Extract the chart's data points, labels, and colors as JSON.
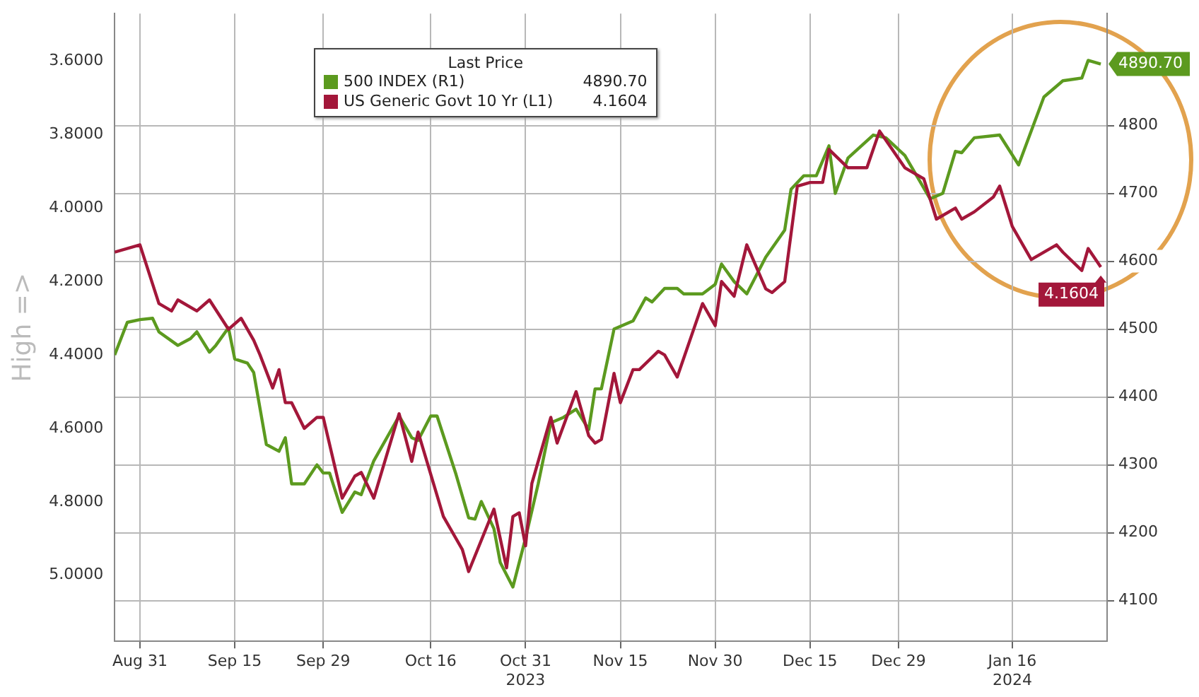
{
  "chart_data": {
    "type": "line",
    "ylabel": "High =>",
    "legend_title": "Last Price",
    "legend": "top",
    "grid": true,
    "marker": "none",
    "line_style": "solid",
    "xlim": [
      "2023-08-27",
      "2024-01-31"
    ],
    "xticks": [
      {
        "value": "2023-08-31",
        "label": "Aug 31"
      },
      {
        "value": "2023-09-15",
        "label": "Sep 15"
      },
      {
        "value": "2023-09-29",
        "label": "Sep 29"
      },
      {
        "value": "2023-10-16",
        "label": "Oct 16"
      },
      {
        "value": "2023-10-31",
        "label": "Oct 31\n2023"
      },
      {
        "value": "2023-11-15",
        "label": "Nov 15"
      },
      {
        "value": "2023-11-30",
        "label": "Nov 30"
      },
      {
        "value": "2023-12-15",
        "label": "Dec 15"
      },
      {
        "value": "2023-12-29",
        "label": "Dec 29"
      },
      {
        "value": "2024-01-16",
        "label": "Jan 16\n2024"
      }
    ],
    "ylim": [
      5.18,
      3.47
    ],
    "yticks": [
      {
        "value": 3.6,
        "label": "3.6000"
      },
      {
        "value": 3.8,
        "label": "3.8000"
      },
      {
        "value": 4.0,
        "label": "4.0000"
      },
      {
        "value": 4.2,
        "label": "4.2000"
      },
      {
        "value": 4.4,
        "label": "4.4000"
      },
      {
        "value": 4.6,
        "label": "4.6000"
      },
      {
        "value": 4.8,
        "label": "4.8000"
      },
      {
        "value": 5.0,
        "label": "5.0000"
      }
    ],
    "y2lim": [
      4040,
      4965
    ],
    "y2ticks": [
      4100,
      4200,
      4300,
      4400,
      4500,
      4600,
      4700,
      4800
    ],
    "series": [
      {
        "name": "500 INDEX (R1)",
        "color": "#5c9a1f",
        "axis": "y2",
        "x": [
          "2023-08-27",
          "2023-08-29",
          "2023-08-31",
          "2023-09-02",
          "2023-09-03",
          "2023-09-06",
          "2023-09-08",
          "2023-09-09",
          "2023-09-11",
          "2023-09-12",
          "2023-09-14",
          "2023-09-15",
          "2023-09-17",
          "2023-09-18",
          "2023-09-20",
          "2023-09-22",
          "2023-09-23",
          "2023-09-24",
          "2023-09-26",
          "2023-09-28",
          "2023-09-29",
          "2023-09-30",
          "2023-10-02",
          "2023-10-04",
          "2023-10-05",
          "2023-10-07",
          "2023-10-11",
          "2023-10-13",
          "2023-10-14",
          "2023-10-16",
          "2023-10-17",
          "2023-10-20",
          "2023-10-22",
          "2023-10-23",
          "2023-10-24",
          "2023-10-26",
          "2023-10-27",
          "2023-10-29",
          "2023-10-31",
          "2023-11-02",
          "2023-11-04",
          "2023-11-06",
          "2023-11-08",
          "2023-11-10",
          "2023-11-11",
          "2023-11-12",
          "2023-11-14",
          "2023-11-17",
          "2023-11-19",
          "2023-11-20",
          "2023-11-22",
          "2023-11-24",
          "2023-11-25",
          "2023-11-28",
          "2023-11-30",
          "2023-12-01",
          "2023-12-03",
          "2023-12-05",
          "2023-12-08",
          "2023-12-11",
          "2023-12-12",
          "2023-12-14",
          "2023-12-16",
          "2023-12-18",
          "2023-12-19",
          "2023-12-21",
          "2023-12-25",
          "2023-12-27",
          "2023-12-30",
          "2024-01-03",
          "2024-01-05",
          "2024-01-07",
          "2024-01-08",
          "2024-01-10",
          "2024-01-14",
          "2024-01-17",
          "2024-01-21",
          "2024-01-24",
          "2024-01-27",
          "2024-01-28",
          "2024-01-30"
        ],
        "values": [
          4462,
          4510,
          4514,
          4516,
          4496,
          4476,
          4486,
          4496,
          4466,
          4476,
          4502,
          4456,
          4450,
          4436,
          4330,
          4320,
          4340,
          4272,
          4272,
          4300,
          4288,
          4288,
          4230,
          4260,
          4256,
          4306,
          4372,
          4340,
          4336,
          4372,
          4372,
          4286,
          4222,
          4220,
          4246,
          4206,
          4156,
          4120,
          4192,
          4272,
          4362,
          4370,
          4382,
          4352,
          4412,
          4412,
          4500,
          4512,
          4546,
          4540,
          4560,
          4560,
          4552,
          4552,
          4566,
          4596,
          4570,
          4552,
          4606,
          4646,
          4706,
          4726,
          4726,
          4770,
          4700,
          4752,
          4786,
          4782,
          4756,
          4692,
          4700,
          4762,
          4760,
          4782,
          4786,
          4742,
          4842,
          4866,
          4870,
          4896,
          4890.7
        ],
        "value_labels": [
          null,
          null,
          null,
          null,
          null,
          null,
          null,
          null,
          null,
          null,
          null,
          null,
          null,
          null,
          null,
          null,
          null,
          null,
          null,
          null,
          null,
          null,
          null,
          null,
          null,
          null,
          null,
          null,
          null,
          null,
          null,
          null,
          null,
          null,
          null,
          null,
          null,
          null,
          null,
          null,
          null,
          null,
          null,
          null,
          null,
          null,
          null,
          null,
          null,
          null,
          null,
          null,
          null,
          null,
          null,
          null,
          null,
          null,
          null,
          null,
          null,
          null,
          null,
          null,
          null,
          null,
          null,
          null,
          null,
          null,
          null,
          null,
          null,
          null,
          null,
          null,
          null,
          null,
          null,
          null,
          "4890.70"
        ]
      },
      {
        "name": "US Generic Govt 10 Yr (L1)",
        "color": "#a3173a",
        "axis": "y",
        "x": [
          "2023-08-27",
          "2023-08-31",
          "2023-09-03",
          "2023-09-05",
          "2023-09-06",
          "2023-09-09",
          "2023-09-11",
          "2023-09-14",
          "2023-09-16",
          "2023-09-18",
          "2023-09-19",
          "2023-09-21",
          "2023-09-22",
          "2023-09-23",
          "2023-09-24",
          "2023-09-26",
          "2023-09-28",
          "2023-09-29",
          "2023-10-02",
          "2023-10-04",
          "2023-10-05",
          "2023-10-07",
          "2023-10-11",
          "2023-10-13",
          "2023-10-14",
          "2023-10-18",
          "2023-10-21",
          "2023-10-22",
          "2023-10-26",
          "2023-10-28",
          "2023-10-29",
          "2023-10-30",
          "2023-10-31",
          "2023-11-01",
          "2023-11-04",
          "2023-11-05",
          "2023-11-08",
          "2023-11-10",
          "2023-11-11",
          "2023-11-12",
          "2023-11-14",
          "2023-11-15",
          "2023-11-17",
          "2023-11-18",
          "2023-11-21",
          "2023-11-22",
          "2023-11-24",
          "2023-11-26",
          "2023-11-28",
          "2023-11-30",
          "2023-12-01",
          "2023-12-03",
          "2023-12-05",
          "2023-12-08",
          "2023-12-09",
          "2023-12-11",
          "2023-12-13",
          "2023-12-15",
          "2023-12-17",
          "2023-12-18",
          "2023-12-21",
          "2023-12-24",
          "2023-12-26",
          "2023-12-28",
          "2023-12-30",
          "2024-01-02",
          "2024-01-04",
          "2024-01-07",
          "2024-01-08",
          "2024-01-10",
          "2024-01-13",
          "2024-01-14",
          "2024-01-16",
          "2024-01-19",
          "2024-01-23",
          "2024-01-24",
          "2024-01-27",
          "2024-01-28",
          "2024-01-30"
        ],
        "values": [
          4.12,
          4.1,
          4.26,
          4.28,
          4.25,
          4.28,
          4.25,
          4.33,
          4.3,
          4.36,
          4.4,
          4.49,
          4.44,
          4.53,
          4.53,
          4.6,
          4.57,
          4.57,
          4.79,
          4.73,
          4.72,
          4.79,
          4.56,
          4.69,
          4.61,
          4.84,
          4.93,
          4.99,
          4.82,
          4.98,
          4.84,
          4.83,
          4.92,
          4.75,
          4.57,
          4.64,
          4.5,
          4.62,
          4.64,
          4.63,
          4.45,
          4.53,
          4.44,
          4.44,
          4.39,
          4.4,
          4.46,
          4.36,
          4.26,
          4.32,
          4.2,
          4.24,
          4.1,
          4.22,
          4.23,
          4.2,
          3.94,
          3.93,
          3.93,
          3.84,
          3.89,
          3.89,
          3.79,
          3.84,
          3.89,
          3.92,
          4.03,
          4.0,
          4.03,
          4.01,
          3.97,
          3.94,
          4.05,
          4.14,
          4.1,
          4.12,
          4.17,
          4.11,
          4.1604
        ],
        "value_labels": [
          null,
          null,
          null,
          null,
          null,
          null,
          null,
          null,
          null,
          null,
          null,
          null,
          null,
          null,
          null,
          null,
          null,
          null,
          null,
          null,
          null,
          null,
          null,
          null,
          null,
          null,
          null,
          null,
          null,
          null,
          null,
          null,
          null,
          null,
          null,
          null,
          null,
          null,
          null,
          null,
          null,
          null,
          null,
          null,
          null,
          null,
          null,
          null,
          null,
          null,
          null,
          null,
          null,
          null,
          null,
          null,
          null,
          null,
          null,
          null,
          null,
          null,
          null,
          null,
          null,
          null,
          null,
          null,
          null,
          null,
          null,
          null,
          null,
          null,
          null,
          null,
          null,
          null,
          "4.1604"
        ]
      }
    ]
  }
}
